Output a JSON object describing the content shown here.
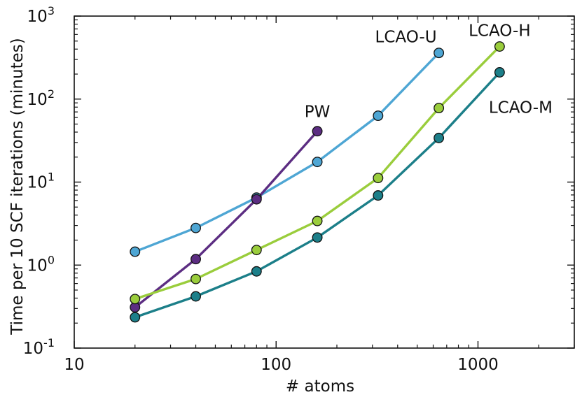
{
  "chart_data": {
    "type": "line",
    "title": "",
    "xlabel": "# atoms",
    "ylabel": "Time per 10 SCF iterations (minutes)",
    "xscale": "log",
    "yscale": "log",
    "xlim": [
      10,
      3000
    ],
    "ylim": [
      0.1,
      1000
    ],
    "grid": false,
    "x_ticks": [
      {
        "value": 10,
        "label": "10"
      },
      {
        "value": 100,
        "label": "100"
      },
      {
        "value": 1000,
        "label": "1000"
      }
    ],
    "y_ticks": [
      {
        "value": 0.1,
        "base": "10",
        "exp": "-1"
      },
      {
        "value": 1,
        "base": "10",
        "exp": "0"
      },
      {
        "value": 10,
        "base": "10",
        "exp": "1"
      },
      {
        "value": 100,
        "base": "10",
        "exp": "2"
      },
      {
        "value": 1000,
        "base": "10",
        "exp": "3"
      }
    ],
    "series": [
      {
        "name": "LCAO-U",
        "color": "#4ea6d4",
        "x": [
          20,
          40,
          80,
          160,
          320,
          640
        ],
        "y": [
          1.45,
          2.8,
          6.5,
          17.5,
          63,
          360
        ]
      },
      {
        "name": "PW",
        "color": "#5c2d82",
        "x": [
          20,
          40,
          80,
          160
        ],
        "y": [
          0.31,
          1.18,
          6.2,
          41
        ]
      },
      {
        "name": "LCAO-H",
        "color": "#9acd3c",
        "x": [
          20,
          40,
          80,
          160,
          320,
          640,
          1280
        ],
        "y": [
          0.39,
          0.68,
          1.52,
          3.4,
          11.2,
          78,
          430
        ]
      },
      {
        "name": "LCAO-M",
        "color": "#1c7f89",
        "x": [
          20,
          40,
          80,
          160,
          320,
          640,
          1280
        ],
        "y": [
          0.235,
          0.42,
          0.84,
          2.15,
          6.9,
          34,
          210
        ]
      }
    ]
  }
}
